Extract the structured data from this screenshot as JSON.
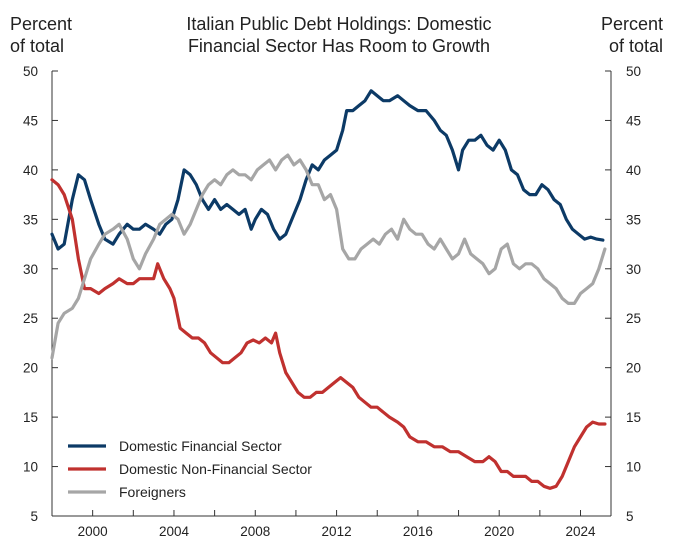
{
  "chart_data": {
    "type": "line",
    "title_line1": "Italian Public Debt Holdings: Domestic",
    "title_line2": "Financial Sector Has Room to Growth",
    "ylabel_left_line1": "Percent",
    "ylabel_left_line2": "of total",
    "ylabel_right_line1": "Percent",
    "ylabel_right_line2": "of total",
    "xlim": [
      1998.0,
      2025.5
    ],
    "ylim": [
      5,
      50
    ],
    "yticks": [
      5,
      10,
      15,
      20,
      25,
      30,
      35,
      40,
      45,
      50
    ],
    "xticks": [
      2000,
      2004,
      2008,
      2012,
      2016,
      2020,
      2024
    ],
    "legend_position": "bottom-left",
    "series": [
      {
        "name": "Domestic Financial Sector",
        "color": "#0c3a66",
        "x": [
          1998.0,
          1998.3,
          1998.6,
          1999.0,
          1999.3,
          1999.6,
          1999.9,
          2000.3,
          2000.6,
          2001.0,
          2001.3,
          2001.7,
          2002.0,
          2002.3,
          2002.6,
          2003.0,
          2003.3,
          2003.6,
          2003.9,
          2004.2,
          2004.5,
          2004.8,
          2005.1,
          2005.4,
          2005.7,
          2006.0,
          2006.3,
          2006.6,
          2006.9,
          2007.2,
          2007.5,
          2007.8,
          2008.0,
          2008.3,
          2008.6,
          2008.9,
          2009.2,
          2009.5,
          2009.8,
          2010.2,
          2010.5,
          2010.8,
          2011.1,
          2011.4,
          2011.7,
          2012.0,
          2012.3,
          2012.5,
          2012.8,
          2013.1,
          2013.4,
          2013.7,
          2014.0,
          2014.3,
          2014.6,
          2015.0,
          2015.3,
          2015.6,
          2016.0,
          2016.4,
          2016.8,
          2017.1,
          2017.4,
          2017.7,
          2018.0,
          2018.2,
          2018.5,
          2018.8,
          2019.1,
          2019.4,
          2019.7,
          2020.0,
          2020.3,
          2020.6,
          2020.9,
          2021.2,
          2021.5,
          2021.8,
          2022.1,
          2022.4,
          2022.7,
          2023.0,
          2023.3,
          2023.6,
          2023.9,
          2024.2,
          2024.5,
          2024.8,
          2025.1
        ],
        "values": [
          33.5,
          32.0,
          32.5,
          37.0,
          39.5,
          39.0,
          37.0,
          34.5,
          33.0,
          32.5,
          33.5,
          34.5,
          34.0,
          34.0,
          34.5,
          34.0,
          33.5,
          34.5,
          35.0,
          37.0,
          40.0,
          39.5,
          38.5,
          37.0,
          36.0,
          37.0,
          36.0,
          36.5,
          36.0,
          35.5,
          36.0,
          34.0,
          35.0,
          36.0,
          35.5,
          34.0,
          33.0,
          33.5,
          35.0,
          37.0,
          39.0,
          40.5,
          40.0,
          41.0,
          41.5,
          42.0,
          44.0,
          46.0,
          46.0,
          46.5,
          47.0,
          48.0,
          47.5,
          47.0,
          47.0,
          47.5,
          47.0,
          46.5,
          46.0,
          46.0,
          45.0,
          44.0,
          43.5,
          42.0,
          40.0,
          42.0,
          43.0,
          43.0,
          43.5,
          42.5,
          42.0,
          43.0,
          42.0,
          40.0,
          39.5,
          38.0,
          37.5,
          37.5,
          38.5,
          38.0,
          37.0,
          36.5,
          35.0,
          34.0,
          33.5,
          33.0,
          33.2,
          33.0,
          32.9
        ]
      },
      {
        "name": "Domestic Non-Financial Sector",
        "color": "#c0312f",
        "x": [
          1998.0,
          1998.3,
          1998.6,
          1999.0,
          1999.3,
          1999.6,
          1999.9,
          2000.3,
          2000.6,
          2001.0,
          2001.3,
          2001.7,
          2002.0,
          2002.3,
          2002.6,
          2003.0,
          2003.2,
          2003.5,
          2003.8,
          2004.0,
          2004.3,
          2004.6,
          2004.9,
          2005.2,
          2005.5,
          2005.8,
          2006.1,
          2006.4,
          2006.7,
          2007.0,
          2007.3,
          2007.6,
          2007.9,
          2008.2,
          2008.5,
          2008.8,
          2009.0,
          2009.2,
          2009.5,
          2009.8,
          2010.1,
          2010.4,
          2010.7,
          2011.0,
          2011.3,
          2011.6,
          2011.9,
          2012.2,
          2012.5,
          2012.8,
          2013.1,
          2013.4,
          2013.7,
          2014.0,
          2014.3,
          2014.6,
          2015.0,
          2015.3,
          2015.6,
          2016.0,
          2016.4,
          2016.8,
          2017.2,
          2017.6,
          2018.0,
          2018.4,
          2018.8,
          2019.2,
          2019.5,
          2019.8,
          2020.1,
          2020.4,
          2020.7,
          2021.0,
          2021.3,
          2021.6,
          2021.9,
          2022.2,
          2022.5,
          2022.8,
          2023.1,
          2023.4,
          2023.7,
          2024.0,
          2024.3,
          2024.6,
          2024.9,
          2025.2
        ],
        "values": [
          39.0,
          38.5,
          37.5,
          35.0,
          31.0,
          28.0,
          28.0,
          27.5,
          28.0,
          28.5,
          29.0,
          28.5,
          28.5,
          29.0,
          29.0,
          29.0,
          30.5,
          29.0,
          28.0,
          27.0,
          24.0,
          23.5,
          23.0,
          23.0,
          22.5,
          21.5,
          21.0,
          20.5,
          20.5,
          21.0,
          21.5,
          22.5,
          22.8,
          22.5,
          23.0,
          22.5,
          23.5,
          21.5,
          19.5,
          18.5,
          17.5,
          17.0,
          17.0,
          17.5,
          17.5,
          18.0,
          18.5,
          19.0,
          18.5,
          18.0,
          17.0,
          16.5,
          16.0,
          16.0,
          15.5,
          15.0,
          14.5,
          14.0,
          13.0,
          12.5,
          12.5,
          12.0,
          12.0,
          11.5,
          11.5,
          11.0,
          10.5,
          10.5,
          11.0,
          10.5,
          9.5,
          9.5,
          9.0,
          9.0,
          9.0,
          8.5,
          8.5,
          8.0,
          7.8,
          8.0,
          9.0,
          10.5,
          12.0,
          13.0,
          14.0,
          14.5,
          14.3,
          14.3
        ]
      },
      {
        "name": "Foreigners",
        "color": "#a6a6a6",
        "x": [
          1998.0,
          1998.3,
          1998.6,
          1999.0,
          1999.3,
          1999.6,
          1999.9,
          2000.3,
          2000.6,
          2001.0,
          2001.3,
          2001.7,
          2002.0,
          2002.3,
          2002.6,
          2003.0,
          2003.3,
          2003.6,
          2003.9,
          2004.2,
          2004.5,
          2004.8,
          2005.1,
          2005.4,
          2005.7,
          2006.0,
          2006.3,
          2006.6,
          2006.9,
          2007.2,
          2007.5,
          2007.8,
          2008.1,
          2008.4,
          2008.7,
          2009.0,
          2009.3,
          2009.6,
          2009.9,
          2010.2,
          2010.5,
          2010.8,
          2011.1,
          2011.4,
          2011.7,
          2012.0,
          2012.3,
          2012.6,
          2012.9,
          2013.2,
          2013.5,
          2013.8,
          2014.1,
          2014.4,
          2014.7,
          2015.0,
          2015.3,
          2015.6,
          2015.9,
          2016.2,
          2016.5,
          2016.8,
          2017.1,
          2017.4,
          2017.7,
          2018.0,
          2018.3,
          2018.6,
          2018.9,
          2019.2,
          2019.5,
          2019.8,
          2020.1,
          2020.4,
          2020.7,
          2021.0,
          2021.3,
          2021.6,
          2021.9,
          2022.2,
          2022.5,
          2022.8,
          2023.1,
          2023.4,
          2023.7,
          2024.0,
          2024.3,
          2024.6,
          2024.9,
          2025.2
        ],
        "values": [
          21.0,
          24.5,
          25.5,
          26.0,
          27.0,
          29.0,
          31.0,
          32.5,
          33.5,
          34.0,
          34.5,
          33.0,
          31.0,
          30.0,
          31.5,
          33.0,
          34.5,
          35.0,
          35.5,
          35.0,
          33.5,
          34.5,
          36.0,
          37.5,
          38.5,
          39.0,
          38.5,
          39.5,
          40.0,
          39.5,
          39.5,
          39.0,
          40.0,
          40.5,
          41.0,
          40.0,
          41.0,
          41.5,
          40.5,
          41.0,
          40.0,
          38.5,
          38.5,
          37.0,
          37.5,
          36.0,
          32.0,
          31.0,
          31.0,
          32.0,
          32.5,
          33.0,
          32.5,
          33.5,
          34.0,
          33.0,
          35.0,
          34.0,
          33.5,
          33.5,
          32.5,
          32.0,
          33.0,
          32.0,
          31.0,
          31.5,
          33.0,
          31.5,
          31.0,
          30.5,
          29.5,
          30.0,
          32.0,
          32.5,
          30.5,
          30.0,
          30.5,
          30.5,
          30.0,
          29.0,
          28.5,
          28.0,
          27.0,
          26.5,
          26.5,
          27.5,
          28.0,
          28.5,
          30.0,
          32.0
        ]
      }
    ]
  }
}
